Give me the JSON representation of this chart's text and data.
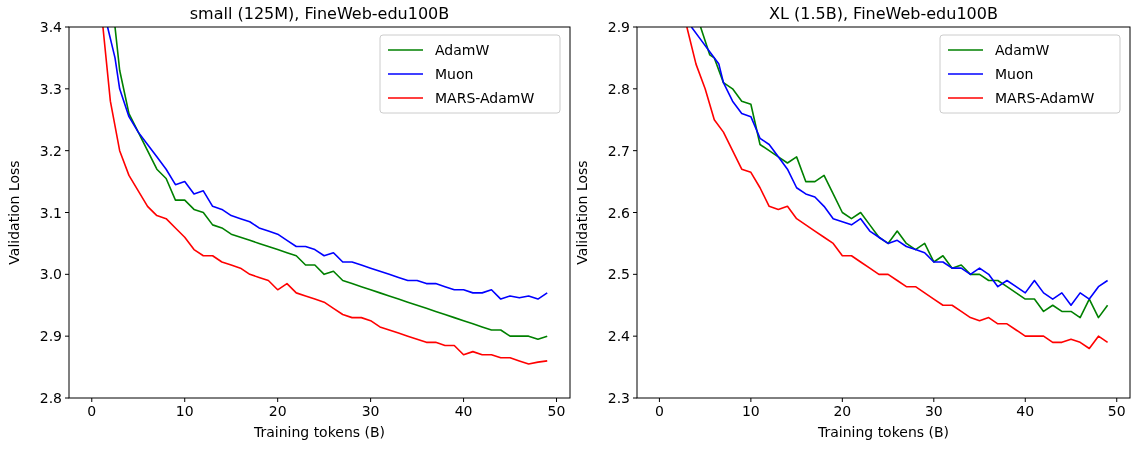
{
  "chart_data": [
    {
      "type": "line",
      "title": "small (125M), FineWeb-edu100B",
      "xlabel": "Training tokens (B)",
      "ylabel": "Validation Loss",
      "xlim": [
        -2.45,
        51.45
      ],
      "xticks": [
        0,
        10,
        20,
        30,
        40,
        50
      ],
      "ylim": [
        2.8,
        3.4
      ],
      "yticks": [
        {
          "value": 2.8,
          "label": "2.8"
        },
        {
          "value": 2.9,
          "label": "2.9"
        },
        {
          "value": 3,
          "label": "3.0"
        },
        {
          "value": 3.1,
          "label": "3.1"
        },
        {
          "value": 3.2,
          "label": "3.2"
        },
        {
          "value": 3.3,
          "label": "3.3"
        },
        {
          "value": 3.4,
          "label": "3.4"
        }
      ],
      "legend": "top right",
      "grid": false,
      "line_style": "solid",
      "series": [
        {
          "name": "AdamW",
          "color": "#008000",
          "x": [
            2.5,
            3,
            4,
            5,
            6,
            7,
            8,
            9,
            10,
            11,
            12,
            13,
            14,
            15,
            16,
            17,
            18,
            19,
            20,
            21,
            22,
            23,
            24,
            25,
            26,
            27,
            28,
            29,
            30,
            31,
            32,
            33,
            34,
            35,
            36,
            37,
            38,
            39,
            40,
            41,
            42,
            43,
            44,
            45,
            46,
            47,
            48,
            49
          ],
          "values": [
            3.4,
            3.33,
            3.26,
            3.23,
            3.2,
            3.17,
            3.155,
            3.12,
            3.12,
            3.105,
            3.1,
            3.08,
            3.075,
            3.065,
            3.06,
            3.055,
            3.05,
            3.045,
            3.04,
            3.035,
            3.03,
            3.015,
            3.015,
            3.0,
            3.005,
            2.99,
            2.985,
            2.98,
            2.975,
            2.97,
            2.965,
            2.96,
            2.955,
            2.95,
            2.945,
            2.94,
            2.935,
            2.93,
            2.925,
            2.92,
            2.915,
            2.91,
            2.91,
            2.9,
            2.9,
            2.9,
            2.895,
            2.9
          ]
        },
        {
          "name": "Muon",
          "color": "#0000ff",
          "x": [
            1.7,
            2.5,
            3,
            4,
            5,
            6,
            7,
            8,
            9,
            10,
            11,
            12,
            13,
            14,
            15,
            16,
            17,
            18,
            19,
            20,
            21,
            22,
            23,
            24,
            25,
            26,
            27,
            28,
            29,
            30,
            31,
            32,
            33,
            34,
            35,
            36,
            37,
            38,
            39,
            40,
            41,
            42,
            43,
            44,
            45,
            46,
            47,
            48,
            49
          ],
          "values": [
            3.4,
            3.35,
            3.3,
            3.255,
            3.23,
            3.21,
            3.19,
            3.17,
            3.145,
            3.15,
            3.13,
            3.135,
            3.11,
            3.105,
            3.095,
            3.09,
            3.085,
            3.075,
            3.07,
            3.065,
            3.055,
            3.045,
            3.045,
            3.04,
            3.03,
            3.035,
            3.02,
            3.02,
            3.015,
            3.01,
            3.005,
            3.0,
            2.995,
            2.99,
            2.99,
            2.985,
            2.985,
            2.98,
            2.975,
            2.975,
            2.97,
            2.97,
            2.975,
            2.96,
            2.965,
            2.962,
            2.965,
            2.96,
            2.97
          ]
        },
        {
          "name": "MARS-AdamW",
          "color": "#ff0000",
          "x": [
            1.2,
            2,
            3,
            4,
            5,
            6,
            7,
            8,
            9,
            10,
            11,
            12,
            13,
            14,
            15,
            16,
            17,
            18,
            19,
            20,
            21,
            22,
            23,
            24,
            25,
            26,
            27,
            28,
            29,
            30,
            31,
            32,
            33,
            34,
            35,
            36,
            37,
            38,
            39,
            40,
            41,
            42,
            43,
            44,
            45,
            46,
            47,
            48,
            49
          ],
          "values": [
            3.4,
            3.28,
            3.2,
            3.16,
            3.135,
            3.11,
            3.095,
            3.09,
            3.075,
            3.06,
            3.04,
            3.03,
            3.03,
            3.02,
            3.015,
            3.01,
            3.0,
            2.995,
            2.99,
            2.975,
            2.985,
            2.97,
            2.965,
            2.96,
            2.955,
            2.945,
            2.935,
            2.93,
            2.93,
            2.925,
            2.915,
            2.91,
            2.905,
            2.9,
            2.895,
            2.89,
            2.89,
            2.885,
            2.885,
            2.87,
            2.875,
            2.87,
            2.87,
            2.865,
            2.865,
            2.86,
            2.855,
            2.858,
            2.86
          ]
        }
      ]
    },
    {
      "type": "line",
      "title": "XL (1.5B), FineWeb-edu100B",
      "xlabel": "Training tokens (B)",
      "ylabel": "Validation Loss",
      "xlim": [
        -2.45,
        51.45
      ],
      "xticks": [
        0,
        10,
        20,
        30,
        40,
        50
      ],
      "ylim": [
        2.3,
        2.9
      ],
      "yticks": [
        2.3,
        2.4,
        2.5,
        2.6,
        2.7,
        2.8,
        2.9
      ],
      "legend": "top right",
      "grid": false,
      "line_style": "solid",
      "series": [
        {
          "name": "AdamW",
          "color": "#008000",
          "x": [
            4.5,
            5.5,
            6,
            7,
            8,
            9,
            10,
            11,
            12,
            13,
            14,
            15,
            16,
            17,
            18,
            19,
            20,
            21,
            22,
            23,
            24,
            25,
            26,
            27,
            28,
            29,
            30,
            31,
            32,
            33,
            34,
            35,
            36,
            37,
            38,
            39,
            40,
            41,
            42,
            43,
            44,
            45,
            46,
            47,
            48,
            49
          ],
          "values": [
            2.9,
            2.855,
            2.85,
            2.81,
            2.8,
            2.78,
            2.775,
            2.71,
            2.7,
            2.69,
            2.68,
            2.69,
            2.65,
            2.65,
            2.66,
            2.63,
            2.6,
            2.59,
            2.6,
            2.58,
            2.56,
            2.55,
            2.57,
            2.55,
            2.54,
            2.55,
            2.52,
            2.53,
            2.51,
            2.515,
            2.5,
            2.5,
            2.49,
            2.49,
            2.48,
            2.47,
            2.46,
            2.46,
            2.44,
            2.45,
            2.44,
            2.44,
            2.43,
            2.46,
            2.43,
            2.45
          ]
        },
        {
          "name": "Muon",
          "color": "#0000ff",
          "x": [
            3.5,
            4.5,
            5.5,
            6.5,
            7,
            8,
            9,
            10,
            11,
            12,
            13,
            14,
            15,
            16,
            17,
            18,
            19,
            20,
            21,
            22,
            23,
            24,
            25,
            26,
            27,
            28,
            29,
            30,
            31,
            32,
            33,
            34,
            35,
            36,
            37,
            38,
            39,
            40,
            41,
            42,
            43,
            44,
            45,
            46,
            47,
            48,
            49
          ],
          "values": [
            2.9,
            2.88,
            2.86,
            2.84,
            2.81,
            2.78,
            2.76,
            2.755,
            2.72,
            2.71,
            2.69,
            2.67,
            2.64,
            2.63,
            2.625,
            2.61,
            2.59,
            2.585,
            2.58,
            2.59,
            2.57,
            2.56,
            2.55,
            2.555,
            2.545,
            2.54,
            2.535,
            2.52,
            2.52,
            2.51,
            2.51,
            2.5,
            2.51,
            2.5,
            2.48,
            2.49,
            2.48,
            2.47,
            2.49,
            2.47,
            2.46,
            2.47,
            2.45,
            2.47,
            2.46,
            2.48,
            2.49
          ]
        },
        {
          "name": "MARS-AdamW",
          "color": "#ff0000",
          "x": [
            3,
            4,
            5,
            6,
            7,
            8,
            9,
            10,
            11,
            12,
            13,
            14,
            15,
            16,
            17,
            18,
            19,
            20,
            21,
            22,
            23,
            24,
            25,
            26,
            27,
            28,
            29,
            30,
            31,
            32,
            33,
            34,
            35,
            36,
            37,
            38,
            39,
            40,
            41,
            42,
            43,
            44,
            45,
            46,
            47,
            48,
            49
          ],
          "values": [
            2.9,
            2.84,
            2.8,
            2.75,
            2.73,
            2.7,
            2.67,
            2.665,
            2.64,
            2.61,
            2.605,
            2.61,
            2.59,
            2.58,
            2.57,
            2.56,
            2.55,
            2.53,
            2.53,
            2.52,
            2.51,
            2.5,
            2.5,
            2.49,
            2.48,
            2.48,
            2.47,
            2.46,
            2.45,
            2.45,
            2.44,
            2.43,
            2.425,
            2.43,
            2.42,
            2.42,
            2.41,
            2.4,
            2.4,
            2.4,
            2.39,
            2.39,
            2.395,
            2.39,
            2.38,
            2.4,
            2.39
          ]
        }
      ]
    }
  ]
}
